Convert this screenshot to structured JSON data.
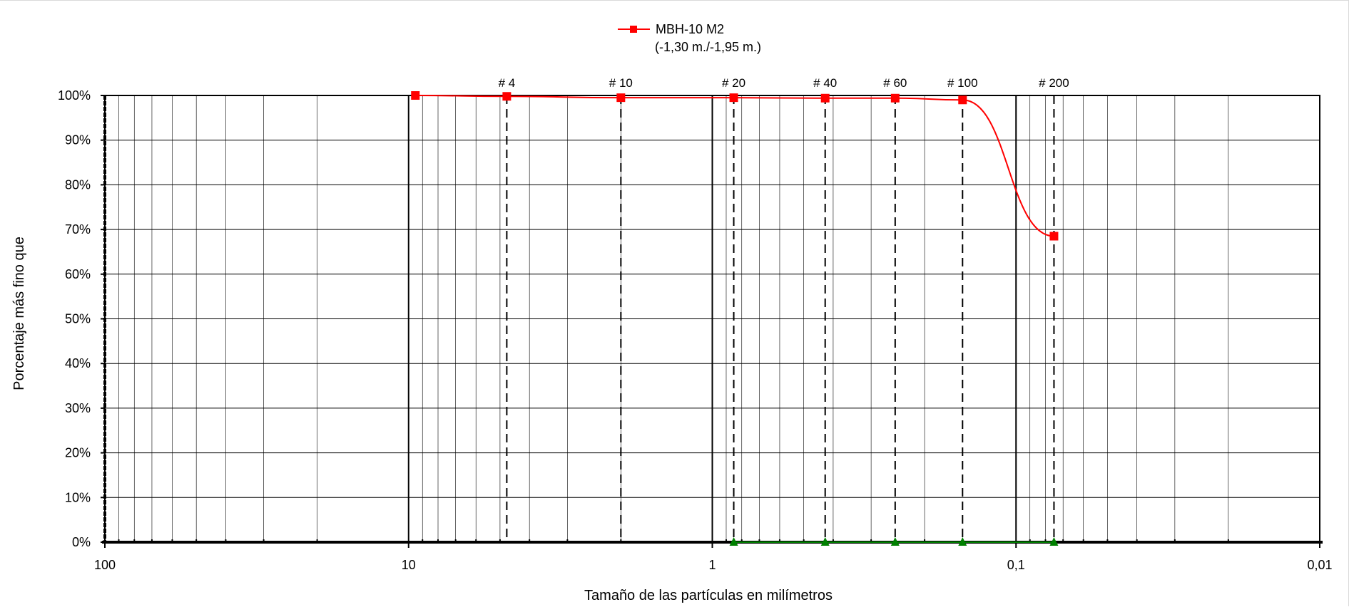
{
  "chart_data": {
    "type": "line",
    "xscale": "log",
    "x_reversed": true,
    "xlim": [
      100,
      0.01
    ],
    "ylim": [
      0,
      100
    ],
    "xlabel": "Tamaño de las partículas en milímetros",
    "ylabel": "Porcentaje más fino que",
    "x_tick_labels": [
      {
        "value": 100,
        "label": "100"
      },
      {
        "value": 10,
        "label": "10"
      },
      {
        "value": 1,
        "label": "1"
      },
      {
        "value": 0.1,
        "label": "0,1"
      },
      {
        "value": 0.01,
        "label": "0,01"
      }
    ],
    "y_tick_labels": [
      {
        "value": 0,
        "label": "0%"
      },
      {
        "value": 10,
        "label": "10%"
      },
      {
        "value": 20,
        "label": "20%"
      },
      {
        "value": 30,
        "label": "30%"
      },
      {
        "value": 40,
        "label": "40%"
      },
      {
        "value": 50,
        "label": "50%"
      },
      {
        "value": 60,
        "label": "60%"
      },
      {
        "value": 70,
        "label": "70%"
      },
      {
        "value": 80,
        "label": "80%"
      },
      {
        "value": 90,
        "label": "90%"
      },
      {
        "value": 100,
        "label": "100%"
      }
    ],
    "sieves": [
      {
        "label": "# 4",
        "size": 4.75
      },
      {
        "label": "# 10",
        "size": 2.0
      },
      {
        "label": "# 20",
        "size": 0.85
      },
      {
        "label": "# 40",
        "size": 0.425
      },
      {
        "label": "# 60",
        "size": 0.25
      },
      {
        "label": "# 100",
        "size": 0.15
      },
      {
        "label": "# 200",
        "size": 0.075
      }
    ],
    "grid": true,
    "legend_position": "top-center",
    "series": [
      {
        "name": "MBH-10 M2",
        "name_line2": "(-1,30 m./-1,95 m.)",
        "color": "#ff0000",
        "marker": "square",
        "x": [
          9.5,
          4.75,
          2.0,
          0.85,
          0.425,
          0.25,
          0.15,
          0.075
        ],
        "y": [
          100,
          99.8,
          99.5,
          99.5,
          99.4,
          99.4,
          99.0,
          68.5
        ]
      },
      {
        "color": "#008000",
        "marker": "triangle",
        "x": [
          0.85,
          0.425,
          0.25,
          0.15,
          0.075
        ],
        "y": [
          0,
          0,
          0,
          0,
          0
        ]
      }
    ]
  }
}
